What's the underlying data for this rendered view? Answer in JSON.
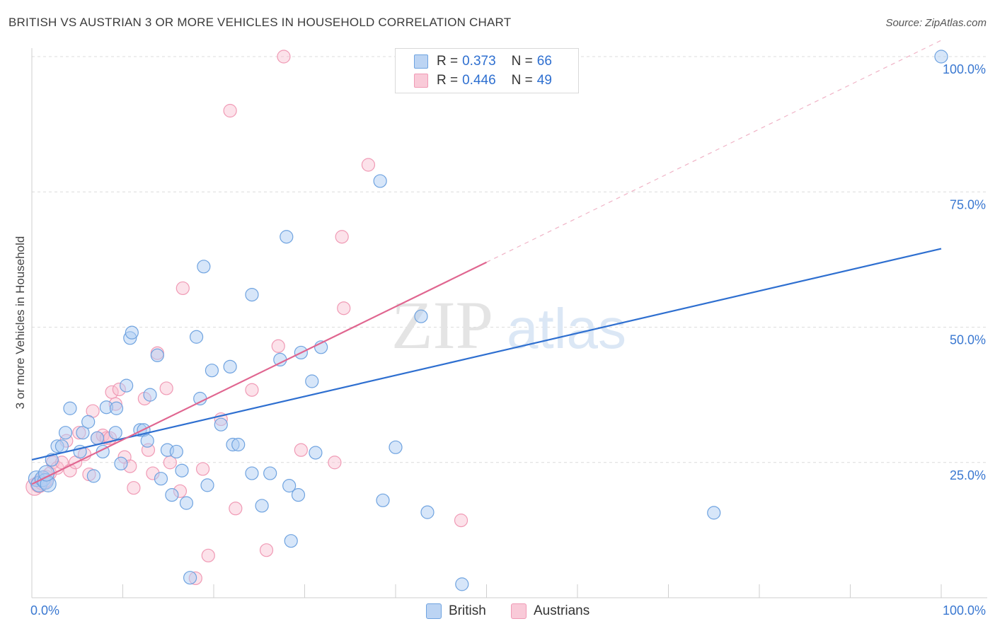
{
  "title": "BRITISH VS AUSTRIAN 3 OR MORE VEHICLES IN HOUSEHOLD CORRELATION CHART",
  "source": "Source: ZipAtlas.com",
  "watermark": {
    "zip": "ZIP",
    "atlas": "atlas"
  },
  "legend": {
    "british": {
      "r_label": "R =",
      "r_value": "0.373",
      "n_label": "N =",
      "n_value": "66"
    },
    "austrians": {
      "r_label": "R =",
      "r_value": "0.446",
      "n_label": "N =",
      "n_value": "49"
    }
  },
  "bottom_legend": {
    "british": "British",
    "austrians": "Austrians"
  },
  "chart_data": {
    "type": "scatter",
    "title": "BRITISH VS AUSTRIAN 3 OR MORE VEHICLES IN HOUSEHOLD CORRELATION CHART",
    "xlabel": "",
    "ylabel": "3 or more Vehicles in Household",
    "xlim": [
      0,
      100
    ],
    "ylim": [
      0,
      100
    ],
    "x_tick_labels": [
      "0.0%",
      "100.0%"
    ],
    "y_tick_labels": [
      "25.0%",
      "50.0%",
      "75.0%",
      "100.0%"
    ],
    "y_ticks": [
      25,
      50,
      75,
      100
    ],
    "grid": true,
    "colors": {
      "british": "#6fa3e0",
      "austrians": "#f09ab5",
      "british_line": "#2e6fd0",
      "austrians_line": "#e06690",
      "axis_text": "#3a78d1"
    },
    "series": [
      {
        "name": "British",
        "r": 0.373,
        "n": 66,
        "trend": {
          "x": [
            0,
            100
          ],
          "y": [
            25.5,
            64.5
          ]
        },
        "points": [
          [
            0.5,
            22
          ],
          [
            0.8,
            21
          ],
          [
            1.2,
            22
          ],
          [
            1.5,
            21.5
          ],
          [
            1.8,
            21
          ],
          [
            1.6,
            23
          ],
          [
            2.2,
            25.5
          ],
          [
            2.8,
            28
          ],
          [
            3.3,
            28
          ],
          [
            3.7,
            30.5
          ],
          [
            4.2,
            35
          ],
          [
            5.3,
            27
          ],
          [
            5.6,
            30.5
          ],
          [
            6.2,
            32.5
          ],
          [
            6.8,
            22.5
          ],
          [
            7.2,
            29.5
          ],
          [
            7.8,
            27
          ],
          [
            8.2,
            35.2
          ],
          [
            9.2,
            30.5
          ],
          [
            9.3,
            35
          ],
          [
            9.8,
            24.8
          ],
          [
            10.4,
            39.2
          ],
          [
            10.8,
            48
          ],
          [
            11.0,
            49
          ],
          [
            11.9,
            31
          ],
          [
            12.3,
            31
          ],
          [
            12.7,
            29
          ],
          [
            13.0,
            37.5
          ],
          [
            13.8,
            44.8
          ],
          [
            14.2,
            22
          ],
          [
            14.9,
            27.3
          ],
          [
            15.4,
            19
          ],
          [
            15.9,
            27
          ],
          [
            16.5,
            23.5
          ],
          [
            17.0,
            17.5
          ],
          [
            17.4,
            3.7
          ],
          [
            18.1,
            48.2
          ],
          [
            18.5,
            36.8
          ],
          [
            18.9,
            61.2
          ],
          [
            19.3,
            20.8
          ],
          [
            19.8,
            42
          ],
          [
            20.8,
            32
          ],
          [
            21.8,
            42.7
          ],
          [
            22.1,
            28.3
          ],
          [
            22.7,
            28.3
          ],
          [
            24.2,
            23
          ],
          [
            24.2,
            56
          ],
          [
            25.3,
            17
          ],
          [
            26.2,
            23
          ],
          [
            27.3,
            44
          ],
          [
            28.0,
            66.7
          ],
          [
            28.3,
            20.7
          ],
          [
            28.5,
            10.5
          ],
          [
            29.3,
            19
          ],
          [
            29.6,
            45.3
          ],
          [
            30.8,
            40
          ],
          [
            31.2,
            26.8
          ],
          [
            31.8,
            46.3
          ],
          [
            38.3,
            77
          ],
          [
            38.6,
            18
          ],
          [
            40.0,
            27.8
          ],
          [
            42.8,
            52
          ],
          [
            43.5,
            15.8
          ],
          [
            47.3,
            2.5
          ],
          [
            75.0,
            15.7
          ],
          [
            100.0,
            100
          ]
        ]
      },
      {
        "name": "Austrians",
        "r": 0.446,
        "n": 49,
        "trend": {
          "x": [
            0,
            50
          ],
          "y": [
            21,
            62
          ]
        },
        "trend_dashed": {
          "x": [
            50,
            100
          ],
          "y": [
            62,
            103
          ]
        },
        "points": [
          [
            0.3,
            20.5
          ],
          [
            0.8,
            21
          ],
          [
            1.2,
            21.5
          ],
          [
            1.5,
            22
          ],
          [
            2.0,
            23
          ],
          [
            2.3,
            25
          ],
          [
            2.8,
            24
          ],
          [
            3.3,
            25
          ],
          [
            3.8,
            29
          ],
          [
            4.2,
            23.5
          ],
          [
            4.8,
            25
          ],
          [
            5.2,
            30.5
          ],
          [
            5.8,
            26.5
          ],
          [
            6.3,
            22.8
          ],
          [
            6.7,
            34.5
          ],
          [
            7.2,
            29.5
          ],
          [
            7.8,
            30
          ],
          [
            8.2,
            29.5
          ],
          [
            8.6,
            29.5
          ],
          [
            8.8,
            38
          ],
          [
            9.2,
            35.8
          ],
          [
            9.6,
            38.5
          ],
          [
            10.2,
            26
          ],
          [
            10.8,
            24.3
          ],
          [
            11.2,
            20.3
          ],
          [
            12.4,
            36.8
          ],
          [
            12.8,
            27.3
          ],
          [
            13.3,
            23
          ],
          [
            13.8,
            45.2
          ],
          [
            14.8,
            38.7
          ],
          [
            15.2,
            25
          ],
          [
            16.3,
            19.7
          ],
          [
            16.6,
            57.2
          ],
          [
            18.0,
            3.6
          ],
          [
            18.8,
            23.8
          ],
          [
            19.4,
            7.8
          ],
          [
            20.8,
            33
          ],
          [
            21.8,
            90
          ],
          [
            22.4,
            16.5
          ],
          [
            24.2,
            38.4
          ],
          [
            25.8,
            8.8
          ],
          [
            27.1,
            46.5
          ],
          [
            27.7,
            100
          ],
          [
            29.6,
            27.3
          ],
          [
            33.3,
            25
          ],
          [
            34.1,
            66.7
          ],
          [
            34.3,
            53.5
          ],
          [
            37.0,
            80
          ],
          [
            47.2,
            14.3
          ]
        ]
      }
    ]
  }
}
